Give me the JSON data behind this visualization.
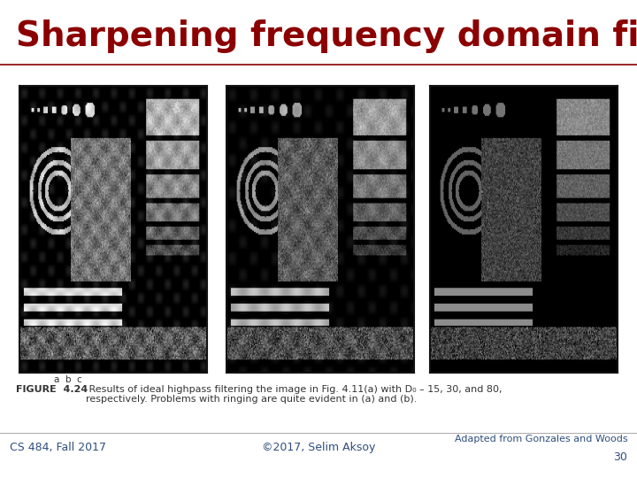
{
  "title": "Sharpening frequency domain filters",
  "title_color": "#8B0000",
  "title_fontsize": 28,
  "title_fontstyle": "bold",
  "bg_color": "#FFFFFF",
  "separator_color": "#8B0000",
  "footer_left": "CS 484, Fall 2017",
  "footer_center": "©2017, Selim Aksoy",
  "footer_right_line1": "Adapted from Gonzales and Woods",
  "footer_right_line2": "30",
  "footer_color": "#2F4F7F",
  "footer_fontsize": 9,
  "figure_caption_bold": "FIGURE  4.24",
  "figure_caption_text": " Results of ideal highpass filtering the image in Fig. 4.11(a) with D₀ – 15, 30, and 80,\nrespectively. Problems with ringing are quite evident in (a) and (b).",
  "caption_fontsize": 8,
  "caption_color": "#333333",
  "label_abc": "a  b  c",
  "image_bg": "#1a1a1a"
}
